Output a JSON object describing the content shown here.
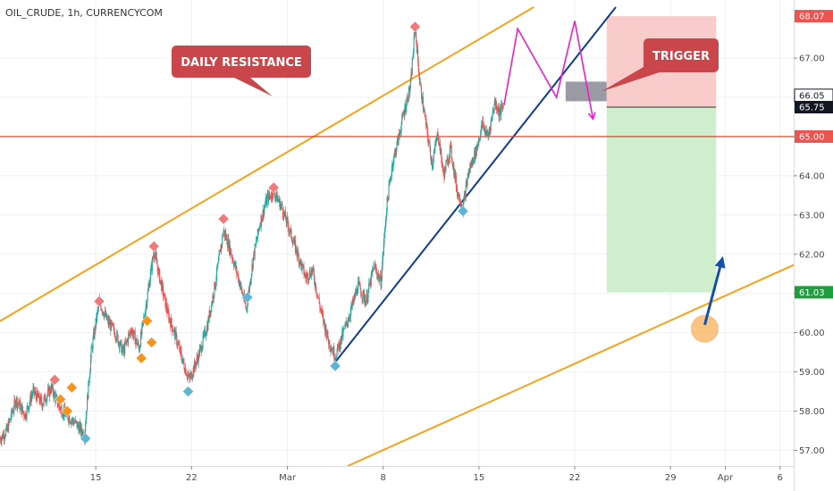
{
  "header": {
    "symbol": "OIL_CRUDE, 1h, CURRENCYCOM"
  },
  "colors": {
    "up": "#26a69a",
    "down": "#ef5350",
    "channel": "#f7a21b",
    "trendline": "#0d3d8c",
    "projection": "#e91ec8",
    "resistance_line": "#e0402a",
    "callout": "#c9474a",
    "stop_zone": "#f8c6c6",
    "target_zone": "#c9ecc9",
    "marker_top": "#f07a7a",
    "marker_bottom": "#5bb5d5",
    "marker_mid": "#f7941d",
    "arrow": "#1552a6"
  },
  "chart_data": {
    "type": "candlestick",
    "timeframe": "1h",
    "xaxis": {
      "range": [
        "2021-02-08",
        "2021-04-07"
      ],
      "ticks": [
        {
          "date": "2021-02-15",
          "label": "15"
        },
        {
          "date": "2021-02-22",
          "label": "22"
        },
        {
          "date": "2021-03-01",
          "label": "Mar"
        },
        {
          "date": "2021-03-08",
          "label": "8"
        },
        {
          "date": "2021-03-15",
          "label": "15"
        },
        {
          "date": "2021-03-22",
          "label": "22"
        },
        {
          "date": "2021-03-29",
          "label": "29"
        },
        {
          "date": "2021-04-02",
          "label": "Apr"
        },
        {
          "date": "2021-04-06",
          "label": "6"
        }
      ]
    },
    "yaxis": {
      "range": [
        56.6,
        68.3
      ],
      "ticks": [
        "57.00",
        "58.00",
        "59.00",
        "60.00",
        "61.00",
        "62.00",
        "63.00",
        "64.00",
        "65.00",
        "66.00",
        "67.00"
      ]
    },
    "price_path": [
      [
        "2021-02-08T00:00",
        57.3
      ],
      [
        "2021-02-08T12:00",
        57.5
      ],
      [
        "2021-02-09T04:00",
        58.3
      ],
      [
        "2021-02-09T20:00",
        57.9
      ],
      [
        "2021-02-10T10:00",
        58.5
      ],
      [
        "2021-02-11T02:00",
        58.2
      ],
      [
        "2021-02-11T18:00",
        58.6
      ],
      [
        "2021-02-12T08:00",
        58.1
      ],
      [
        "2021-02-12T20:00",
        57.9
      ],
      [
        "2021-02-13T12:00",
        57.7
      ],
      [
        "2021-02-14T04:00",
        57.4
      ],
      [
        "2021-02-14T16:00",
        59.5
      ],
      [
        "2021-02-15T06:00",
        60.8
      ],
      [
        "2021-02-15T20:00",
        60.3
      ],
      [
        "2021-02-16T10:00",
        60.0
      ],
      [
        "2021-02-17T00:00",
        59.5
      ],
      [
        "2021-02-17T14:00",
        60.1
      ],
      [
        "2021-02-18T04:00",
        59.6
      ],
      [
        "2021-02-18T18:00",
        60.9
      ],
      [
        "2021-02-19T06:00",
        62.1
      ],
      [
        "2021-02-19T16:00",
        61.4
      ],
      [
        "2021-02-20T06:00",
        60.5
      ],
      [
        "2021-02-20T20:00",
        59.9
      ],
      [
        "2021-02-21T10:00",
        59.2
      ],
      [
        "2021-02-21T20:00",
        58.8
      ],
      [
        "2021-02-22T12:00",
        59.4
      ],
      [
        "2021-02-23T04:00",
        60.2
      ],
      [
        "2021-02-23T18:00",
        61.3
      ],
      [
        "2021-02-24T08:00",
        62.6
      ],
      [
        "2021-02-24T18:00",
        62.2
      ],
      [
        "2021-02-25T10:00",
        61.4
      ],
      [
        "2021-02-26T00:00",
        60.6
      ],
      [
        "2021-02-26T12:00",
        61.9
      ],
      [
        "2021-02-27T00:00",
        62.8
      ],
      [
        "2021-02-27T12:00",
        63.4
      ],
      [
        "2021-02-28T00:00",
        63.6
      ],
      [
        "2021-02-28T14:00",
        63.2
      ],
      [
        "2021-03-01T04:00",
        62.6
      ],
      [
        "2021-03-01T18:00",
        62.0
      ],
      [
        "2021-03-02T08:00",
        61.4
      ],
      [
        "2021-03-02T20:00",
        61.6
      ],
      [
        "2021-03-03T10:00",
        60.6
      ],
      [
        "2021-03-04T00:00",
        59.8
      ],
      [
        "2021-03-04T12:00",
        59.4
      ],
      [
        "2021-03-05T00:00",
        59.9
      ],
      [
        "2021-03-05T14:00",
        60.5
      ],
      [
        "2021-03-06T04:00",
        61.2
      ],
      [
        "2021-03-06T18:00",
        60.8
      ],
      [
        "2021-03-07T08:00",
        61.7
      ],
      [
        "2021-03-07T20:00",
        61.3
      ],
      [
        "2021-03-08T06:00",
        63.2
      ],
      [
        "2021-03-08T16:00",
        64.3
      ],
      [
        "2021-03-09T02:00",
        64.9
      ],
      [
        "2021-03-09T12:00",
        65.6
      ],
      [
        "2021-03-10T00:00",
        66.3
      ],
      [
        "2021-03-10T08:00",
        67.8
      ],
      [
        "2021-03-10T16:00",
        66.4
      ],
      [
        "2021-03-11T04:00",
        65.2
      ],
      [
        "2021-03-11T14:00",
        64.3
      ],
      [
        "2021-03-12T00:00",
        65.1
      ],
      [
        "2021-03-12T10:00",
        64.0
      ],
      [
        "2021-03-12T22:00",
        64.7
      ],
      [
        "2021-03-13T10:00",
        63.6
      ],
      [
        "2021-03-13T20:00",
        63.2
      ],
      [
        "2021-03-14T06:00",
        64.1
      ],
      [
        "2021-03-14T18:00",
        64.6
      ],
      [
        "2021-03-15T06:00",
        65.3
      ],
      [
        "2021-03-15T16:00",
        65.0
      ],
      [
        "2021-03-16T04:00",
        65.9
      ],
      [
        "2021-03-16T12:00",
        65.6
      ],
      [
        "2021-03-16T20:00",
        65.8
      ]
    ],
    "annotations": {
      "daily_resistance_channel": {
        "label": "DAILY RESISTANCE",
        "upper": [
          [
            "2021-02-05T20:00",
            59.85
          ],
          [
            "2021-03-19T00:00",
            68.3
          ]
        ],
        "lower": [
          [
            "2021-03-05T10:00",
            56.6
          ],
          [
            "2021-04-08T10:00",
            61.95
          ]
        ]
      },
      "ascending_trendline": [
        [
          "2021-03-04T12:00",
          59.25
        ],
        [
          "2021-03-25T00:00",
          68.3
        ]
      ],
      "horizontal_level": 65.0,
      "projected_path": [
        [
          "2021-03-16T20:00",
          65.8
        ],
        [
          "2021-03-17T20:00",
          67.75
        ],
        [
          "2021-03-20T16:00",
          66.0
        ],
        [
          "2021-03-22T00:00",
          67.95
        ],
        [
          "2021-03-23T08:00",
          65.45
        ]
      ],
      "trigger_zone": {
        "label": "TRIGGER",
        "from": "2021-03-21T08:00",
        "to": "2021-03-24T08:00",
        "low": 65.9,
        "high": 66.4
      },
      "position": {
        "from": "2021-03-24T08:00",
        "to": "2021-04-01T08:00",
        "entry": 65.75,
        "stop": 68.07,
        "target": 61.03
      },
      "target_circle": [
        "2021-03-31T12:00",
        60.1
      ],
      "target_arrow": [
        [
          "2021-03-31T12:00",
          60.2
        ],
        [
          "2021-04-01T20:00",
          61.95
        ]
      ],
      "pivot_markers": [
        {
          "t": "2021-02-12T00:00",
          "p": 58.8,
          "kind": "top"
        },
        {
          "t": "2021-02-15T06:00",
          "p": 60.8,
          "kind": "top"
        },
        {
          "t": "2021-02-19T06:00",
          "p": 62.2,
          "kind": "top"
        },
        {
          "t": "2021-02-24T08:00",
          "p": 62.9,
          "kind": "top"
        },
        {
          "t": "2021-02-28T00:00",
          "p": 63.7,
          "kind": "top"
        },
        {
          "t": "2021-03-10T08:00",
          "p": 67.8,
          "kind": "top"
        },
        {
          "t": "2021-02-14T06:00",
          "p": 57.3,
          "kind": "bottom"
        },
        {
          "t": "2021-02-21T18:00",
          "p": 58.5,
          "kind": "bottom"
        },
        {
          "t": "2021-02-26T02:00",
          "p": 60.9,
          "kind": "bottom"
        },
        {
          "t": "2021-03-04T12:00",
          "p": 59.15,
          "kind": "bottom"
        },
        {
          "t": "2021-03-13T20:00",
          "p": 63.1,
          "kind": "bottom"
        },
        {
          "t": "2021-02-12T10:00",
          "p": 58.3,
          "kind": "mid"
        },
        {
          "t": "2021-02-12T22:00",
          "p": 58.0,
          "kind": "mid"
        },
        {
          "t": "2021-02-13T06:00",
          "p": 58.6,
          "kind": "mid"
        },
        {
          "t": "2021-02-18T08:00",
          "p": 59.35,
          "kind": "mid"
        },
        {
          "t": "2021-02-18T18:00",
          "p": 60.3,
          "kind": "mid"
        },
        {
          "t": "2021-02-19T02:00",
          "p": 59.75,
          "kind": "mid"
        }
      ]
    },
    "price_badges": [
      {
        "value": 68.07,
        "label": "68.07",
        "style": "red"
      },
      {
        "value": 66.05,
        "label": "66.05",
        "style": "outline"
      },
      {
        "value": 65.75,
        "label": "65.75",
        "style": "dark"
      },
      {
        "value": 65.0,
        "label": "65.00",
        "style": "red"
      },
      {
        "value": 61.03,
        "label": "61.03",
        "style": "green"
      }
    ]
  }
}
